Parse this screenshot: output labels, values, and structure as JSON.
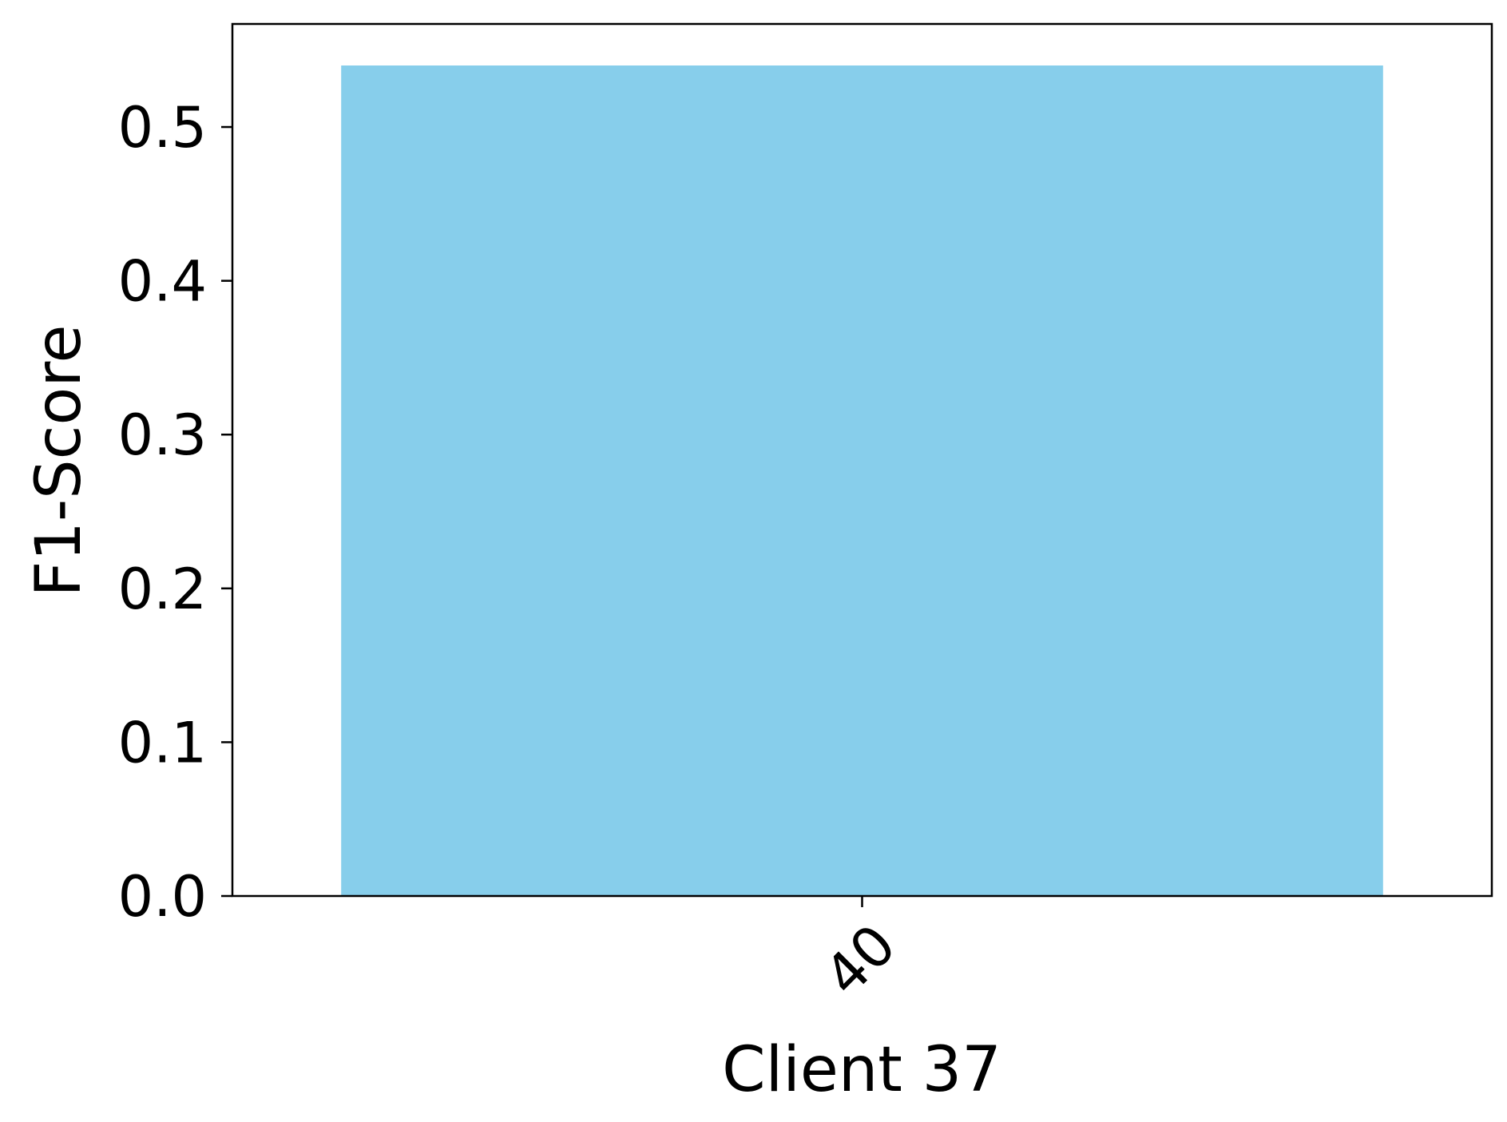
{
  "chart_data": {
    "type": "bar",
    "categories": [
      "40"
    ],
    "values": [
      0.54
    ],
    "title": "",
    "xlabel": "Client 37",
    "ylabel": "F1-Score",
    "ylim": [
      0,
      0.567
    ],
    "yticks": [
      "0.0",
      "0.1",
      "0.2",
      "0.3",
      "0.4",
      "0.5"
    ],
    "bar_color": "#87CEEB",
    "grid": false,
    "legend": "none"
  }
}
